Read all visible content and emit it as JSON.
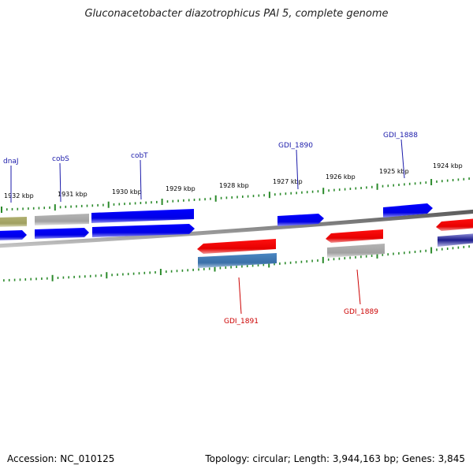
{
  "title": "Gluconacetobacter diazotrophicus PAl 5, complete genome",
  "footer": {
    "accession": "Accession: NC_010125",
    "summary": "Topology: circular; Length: 3,944,163 bp; Genes: 3,845"
  },
  "colors": {
    "forward_gene": "#0000ee",
    "reverse_gene": "#ee0000",
    "pseudo_gene": "#aaaaaa",
    "rna_gene": "#3c78b4",
    "other_gene": "#a8a868",
    "backbone": "#7a7a7a",
    "tick": "#2a8a2a",
    "forward_label": "#1a1aaa",
    "reverse_label": "#cc0000"
  },
  "scale_labels": [
    "1932 kbp",
    "1931 kbp",
    "1930 kbp",
    "1929 kbp",
    "1928 kbp",
    "1927 kbp",
    "1926 kbp",
    "1925 kbp",
    "1924 kbp"
  ],
  "gene_labels": [
    {
      "name": "dnaJ",
      "strand": "forward"
    },
    {
      "name": "cobS",
      "strand": "forward"
    },
    {
      "name": "cobT",
      "strand": "forward"
    },
    {
      "name": "GDI_1890",
      "strand": "forward"
    },
    {
      "name": "GDI_1888",
      "strand": "forward"
    },
    {
      "name": "GDI_1891",
      "strand": "reverse"
    },
    {
      "name": "GDI_1889",
      "strand": "reverse"
    }
  ]
}
